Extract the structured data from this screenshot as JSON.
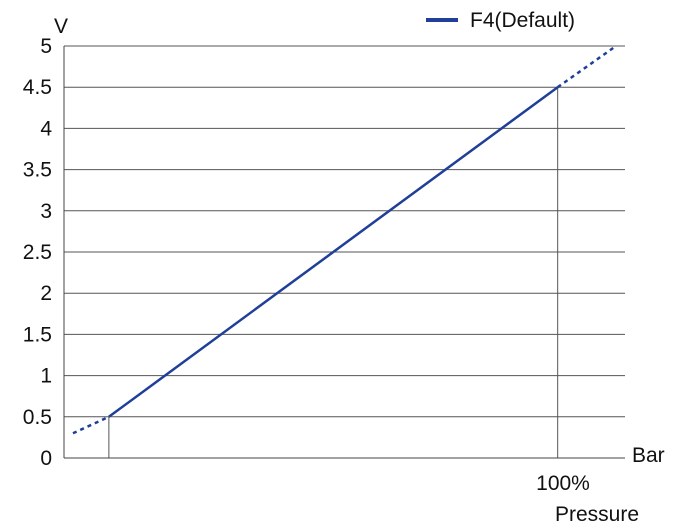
{
  "chart_data": {
    "type": "line",
    "ylabel": "V",
    "xlabel": "Bar",
    "ylim": [
      0,
      5
    ],
    "yticks": [
      "0",
      "0.5",
      "1",
      "1.5",
      "2",
      "2.5",
      "3",
      "3.5",
      "4",
      "4.5",
      "5"
    ],
    "xlim": [
      -10,
      115
    ],
    "x_unit": "%",
    "grid": true,
    "legend_position": "top-right",
    "series": [
      {
        "name": "F4(Default)",
        "color": "#1f3f99",
        "points": [
          {
            "x": 0,
            "y": 0.5
          },
          {
            "x": 100,
            "y": 4.5
          }
        ],
        "dotted_extension": [
          {
            "x": -8,
            "y": 0.3
          },
          {
            "x": 0,
            "y": 0.5
          },
          {
            "x": 100,
            "y": 4.5
          },
          {
            "x": 113,
            "y": 5
          }
        ]
      }
    ],
    "reference_lines": [
      {
        "x": 0,
        "y": 0.5
      },
      {
        "x": 100,
        "y": 4.5
      }
    ],
    "annotations": [
      {
        "text": "100%",
        "x": 100
      },
      {
        "text": "Pressure",
        "x": 100
      }
    ]
  }
}
